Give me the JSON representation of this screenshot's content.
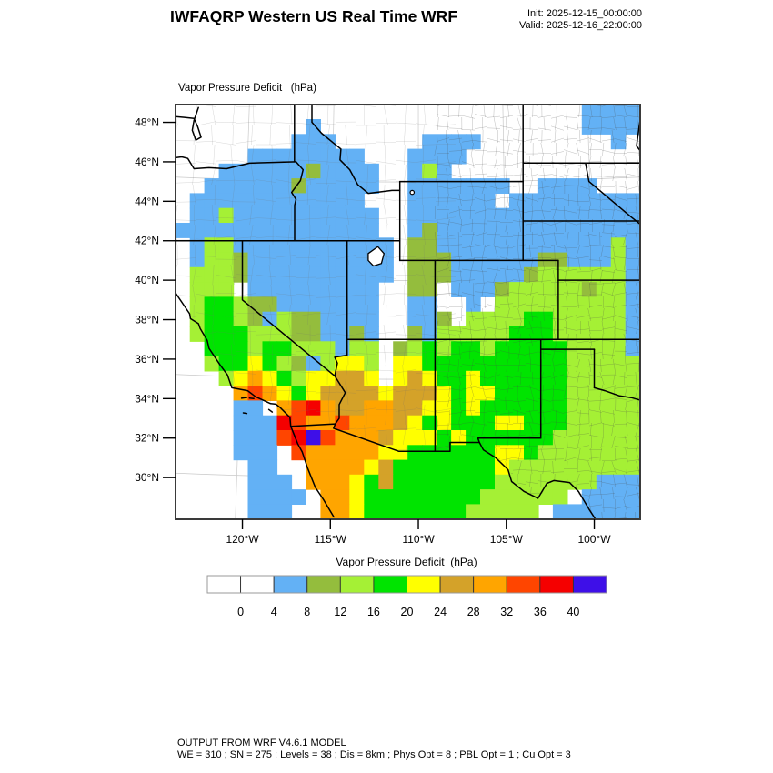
{
  "header": {
    "title": "IWFAQRP Western US Real Time WRF",
    "init": "Init: 2025-12-15_00:00:00",
    "valid": "Valid: 2025-12-16_22:00:00"
  },
  "map": {
    "field_label": "Vapor Pressure Deficit   (hPa)",
    "lat_ticks": [
      {
        "deg": 48,
        "label": "48°N"
      },
      {
        "deg": 46,
        "label": "46°N"
      },
      {
        "deg": 44,
        "label": "44°N"
      },
      {
        "deg": 42,
        "label": "42°N"
      },
      {
        "deg": 40,
        "label": "40°N"
      },
      {
        "deg": 38,
        "label": "38°N"
      },
      {
        "deg": 36,
        "label": "36°N"
      },
      {
        "deg": 34,
        "label": "34°N"
      },
      {
        "deg": 32,
        "label": "32°N"
      },
      {
        "deg": 30,
        "label": "30°N"
      }
    ],
    "lon_ticks": [
      {
        "deg": -120,
        "label": "120°W"
      },
      {
        "deg": -115,
        "label": "115°W"
      },
      {
        "deg": -110,
        "label": "110°W"
      },
      {
        "deg": -105,
        "label": "105°W"
      },
      {
        "deg": -100,
        "label": "100°W"
      }
    ]
  },
  "colorbar": {
    "title": "Vapor Pressure Deficit  (hPa)",
    "labels": [
      "0",
      "4",
      "8",
      "12",
      "16",
      "20",
      "24",
      "28",
      "32",
      "36",
      "40"
    ],
    "colors": [
      "#FFFFFF",
      "#FFFFFF",
      "#63B1F5",
      "#94BD3D",
      "#A5F035",
      "#00E400",
      "#FFFF00",
      "#D4A229",
      "#FFA500",
      "#FF4500",
      "#F50000",
      "#3E0FE8"
    ]
  },
  "footer": {
    "line1": "OUTPUT FROM WRF V4.6.1 MODEL",
    "line2": "WE = 310 ; SN = 275 ; Levels = 38 ; Dis = 8km ; Phys Opt = 8 ; PBL Opt = 1 ; Cu Opt = 3"
  },
  "chart_data": {
    "type": "heatmap",
    "variable": "Vapor Pressure Deficit",
    "units": "hPa",
    "model": "WRF V4.6.1",
    "init": "2025-12-15_00:00:00",
    "valid": "2025-12-16_22:00:00",
    "levels": [
      0,
      4,
      8,
      12,
      16,
      20,
      24,
      28,
      32,
      36,
      40
    ],
    "palette": {
      "<0": "#FFFFFF",
      "0-4": "#FFFFFF",
      "4-8": "#63B1F5",
      "8-12": "#94BD3D",
      "12-16": "#A5F035",
      "16-20": "#00E400",
      "20-24": "#FFFF00",
      "24-28": "#D4A229",
      "28-32": "#FFA500",
      "32-36": "#FF4500",
      "36-40": "#F50000",
      ">40": "#3E0FE8"
    },
    "extent": {
      "lon_min": -123.8,
      "lon_max": -97.4,
      "lat_min": 27.9,
      "lat_max": 48.9
    },
    "grid_legend": {
      ".": "<4 (white)",
      "b": "4-8",
      "o": "8-12",
      "g": "12-16",
      "G": "16-20",
      "y": "20-24",
      "t": "24-28",
      "O": "28-32",
      "r": "32-36",
      "R": "36-40",
      "p": ">40"
    },
    "char_colors": {
      ".": "#FFFFFF",
      "b": "#63B1F5",
      "o": "#94BD3D",
      "g": "#A5F035",
      "G": "#00E400",
      "y": "#FFFF00",
      "t": "#D4A229",
      "O": "#FFA500",
      "r": "#FF4500",
      "R": "#F50000",
      "p": "#3E0FE8"
    },
    "grid_cols": 32,
    "grid_rows_count": 28,
    "grid_rows": [
      "............................bbbb",
      ".........b..................bbbb",
      "........bbb......bbbb.........b.",
      ".....bbbbbbbb...bbbb............",
      "...bbbbbbobbbb..bgb.............",
      "..bbbbbbobbbbb..bbbbbbb..bbbb...",
      ".bbbbbbbbbbbb...bbbbbb.bbbbbbbbb",
      ".bbgbbbbbbbbbb..bbbbbbbbbbbbbbbb",
      "bbbbbbbbbbbbbb..bobbbbbbbbbbbbbb",
      ".bggbbbbbbbbbbb.oobbbbbbbbbbbbgb",
      ".bggobbbbbbbbbb.ooobbbbbboobbbgb",
      ".gggobbbbbbbbbb.ooobbbbboggggggb",
      ".ggg.bbbbbbbbb..oo.bbbogggggoggb",
      ".gGGgoobbbbbbb..bb..b.gggggggggb",
      ".gGGgobgoobbbb..bbo.ggggGGgggggb",
      ".gGGGgggoobbob..obgggggGGGgggggb",
      "..GGGgGGgggbgg.ogGgGGgGGGGGggggb",
      "..gGGyGgobgyyg.yyGGGGGGGGGGggggg",
      "...gyOyGgyytty.ytyGGyGGGGGGggggg",
      "....OrOyGyttttytttyGyyGGGGGggggg",
      "....bb.OrROttOOttyyGyGGGGGGggggg",
      "....bbbRrOOrOOOtyGyGGGyyGGGggggg",
      "....bbbrRprOOOtyyyGyGGGGGGgggggg",
      "....bbb.rOOOOOyyGGGGGGyyGggggggg",
      ".....bb..OOOOytGGGGGGGyggggggggg",
      ".....bbb.OOOyGtGGGGGGGgggggggbbb",
      ".....bbbb.OOyGGGGGGGGgggggg.bbbb",
      ".....bbb..OOyGGGGGGGggggg.bbbbbb"
    ]
  }
}
